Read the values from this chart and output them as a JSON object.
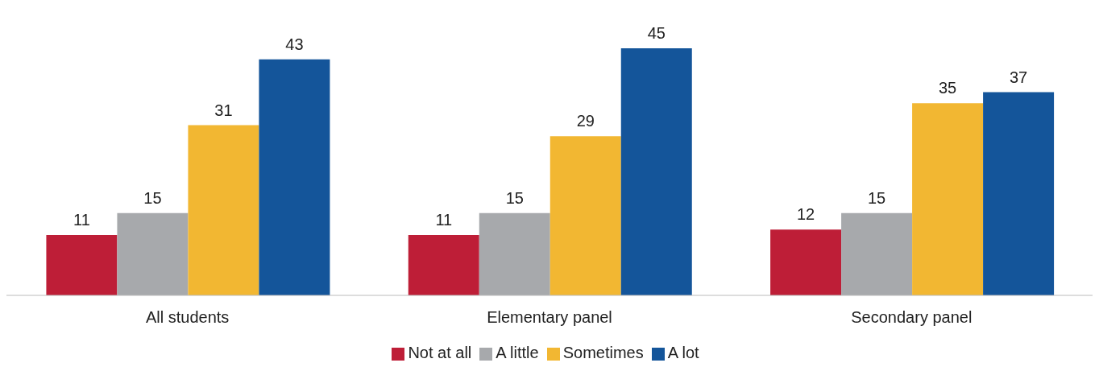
{
  "chart_data": {
    "type": "bar",
    "categories": [
      "All students",
      "Elementary panel",
      "Secondary panel"
    ],
    "series": [
      {
        "name": "Not at all",
        "color": "#be1e37",
        "values": [
          11,
          11,
          12
        ]
      },
      {
        "name": "A little",
        "color": "#a7a9ac",
        "values": [
          15,
          15,
          15
        ]
      },
      {
        "name": "Sometimes",
        "color": "#f2b732",
        "values": [
          31,
          29,
          35
        ]
      },
      {
        "name": "A lot",
        "color": "#14559a",
        "values": [
          43,
          45,
          37
        ]
      }
    ],
    "data_labels": true,
    "legend": "bottom"
  }
}
